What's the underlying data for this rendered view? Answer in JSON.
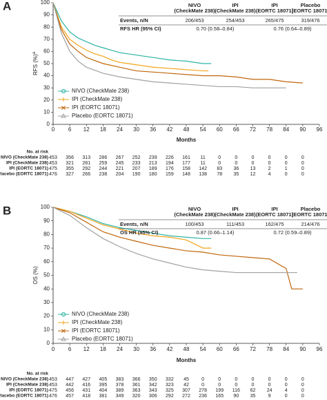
{
  "chart_data": [
    {
      "type": "line",
      "panel": "A",
      "xlabel": "Months",
      "ylabel": "RFS (%)",
      "ylabel_note": "a",
      "xlim": [
        0,
        96
      ],
      "xticks": [
        0,
        6,
        12,
        18,
        24,
        30,
        36,
        42,
        48,
        54,
        60,
        66,
        72,
        78,
        84,
        90,
        96
      ],
      "ylim": [
        0,
        100
      ],
      "yticks": [
        0,
        10,
        20,
        30,
        40,
        50,
        60,
        70,
        80,
        90,
        100
      ],
      "table": {
        "columns": [
          [
            "NIVO",
            "(CheckMate 238)"
          ],
          [
            "IPI",
            "(CheckMate 238)"
          ],
          [
            "IPI",
            "(EORTC 18071)"
          ],
          [
            "Placebo",
            "(EORTC 18071)"
          ]
        ],
        "events_label": "Events, n/N",
        "events": [
          "206/453",
          "254/453",
          "265/475",
          "319/476"
        ],
        "hr_label": "RFS HR (95% CI)",
        "hr": [
          "0.70 (0.58–0.84)",
          "0.76 (0.64–0.89)"
        ]
      },
      "risk_title": "No. at risk",
      "series": [
        {
          "name": "NIVO (CheckMate 238)",
          "color": "#2ab3a3",
          "marker": "circle",
          "x": [
            0,
            3,
            6,
            9,
            12,
            15,
            18,
            21,
            24,
            30,
            36,
            42,
            48,
            54,
            57
          ],
          "values": [
            100,
            85,
            76,
            71,
            68,
            65,
            63,
            61,
            59,
            57,
            55,
            53,
            52,
            50,
            50
          ],
          "at_risk": [
            453,
            356,
            313,
            286,
            267,
            252,
            239,
            226,
            161,
            11,
            0,
            0,
            0,
            0,
            0,
            0
          ]
        },
        {
          "name": "IPI (CheckMate 238)",
          "color": "#f2a31b",
          "marker": "plus",
          "x": [
            0,
            3,
            6,
            9,
            12,
            15,
            18,
            21,
            24,
            30,
            36,
            42,
            48,
            54,
            56
          ],
          "values": [
            100,
            80,
            70,
            65,
            61,
            58,
            56,
            53,
            51,
            49,
            47,
            46,
            45,
            44,
            44
          ],
          "at_risk": [
            453,
            321,
            281,
            259,
            245,
            233,
            213,
            194,
            177,
            11,
            0,
            0,
            0,
            0,
            0,
            0
          ]
        },
        {
          "name": "IPI (EORTC 18071)",
          "color": "#c0650a",
          "marker": "cross",
          "x": [
            0,
            3,
            6,
            9,
            12,
            18,
            24,
            30,
            36,
            42,
            48,
            54,
            60,
            66,
            72,
            78,
            84,
            90
          ],
          "values": [
            100,
            78,
            66,
            60,
            55,
            50,
            47,
            44,
            43,
            42,
            41,
            40,
            40,
            39,
            37,
            37,
            35,
            34
          ],
          "at_risk": [
            475,
            355,
            292,
            244,
            221,
            207,
            189,
            176,
            158,
            142,
            83,
            36,
            13,
            2,
            1,
            0
          ]
        },
        {
          "name": "Placebo (EORTC 18071)",
          "color": "#a0a0a0",
          "marker": "triangle",
          "x": [
            0,
            3,
            6,
            9,
            12,
            18,
            24,
            30,
            36,
            42,
            48,
            54,
            60,
            66,
            72,
            78,
            84
          ],
          "values": [
            100,
            75,
            60,
            52,
            47,
            42,
            39,
            37,
            35,
            34,
            33,
            32,
            31,
            31,
            30,
            30,
            30
          ],
          "at_risk": [
            476,
            327,
            266,
            238,
            204,
            190,
            180,
            159,
            148,
            138,
            78,
            35,
            12,
            4,
            0,
            0
          ]
        }
      ]
    },
    {
      "type": "line",
      "panel": "B",
      "xlabel": "Months",
      "ylabel": "OS (%)",
      "xlim": [
        0,
        96
      ],
      "xticks": [
        0,
        6,
        12,
        18,
        24,
        30,
        36,
        42,
        48,
        54,
        60,
        66,
        72,
        78,
        84,
        90,
        96
      ],
      "ylim": [
        0,
        100
      ],
      "yticks": [
        0,
        10,
        20,
        30,
        40,
        50,
        60,
        70,
        80,
        90,
        100
      ],
      "table": {
        "columns": [
          [
            "NIVO",
            "(CheckMate 238)"
          ],
          [
            "IPI",
            "(CheckMate 238)"
          ],
          [
            "IPI",
            "(EORTC 18071)"
          ],
          [
            "Placebo",
            "(EORTC 18071)"
          ]
        ],
        "events_label": "Events, n/N",
        "events": [
          "100/453",
          "111/453",
          "162/475",
          "214/476"
        ],
        "hr_label": "OS HR (95% CI)",
        "hr": [
          "0.87 (0.66–1.14)",
          "0.72 (0.59–0.89)"
        ]
      },
      "risk_title": "No. at risk",
      "series": [
        {
          "name": "NIVO (CheckMate 238)",
          "color": "#2ab3a3",
          "marker": "circle",
          "x": [
            0,
            6,
            12,
            18,
            24,
            30,
            36,
            42,
            48,
            54,
            57
          ],
          "values": [
            100,
            97,
            93,
            88,
            85,
            83,
            81,
            79,
            78,
            77,
            77
          ],
          "at_risk": [
            453,
            447,
            427,
            405,
            383,
            366,
            350,
            332,
            45,
            0,
            0,
            0,
            0,
            0,
            0,
            0
          ]
        },
        {
          "name": "IPI (CheckMate 238)",
          "color": "#f2a31b",
          "marker": "plus",
          "x": [
            0,
            6,
            12,
            18,
            24,
            30,
            36,
            42,
            48,
            52,
            54,
            57
          ],
          "values": [
            100,
            97,
            92,
            87,
            84,
            81,
            79,
            78,
            76,
            72,
            70,
            70
          ],
          "at_risk": [
            453,
            442,
            416,
            395,
            378,
            361,
            342,
            323,
            42,
            0,
            0,
            0,
            0,
            0,
            0,
            0
          ]
        },
        {
          "name": "IPI (EORTC 18071)",
          "color": "#c0650a",
          "marker": "cross",
          "x": [
            0,
            6,
            12,
            18,
            24,
            30,
            36,
            42,
            48,
            54,
            60,
            66,
            72,
            78,
            84,
            86,
            90
          ],
          "values": [
            100,
            96,
            89,
            82,
            78,
            75,
            72,
            70,
            68,
            67,
            65,
            64,
            63,
            62,
            55,
            40,
            40
          ],
          "at_risk": [
            475,
            456,
            431,
            404,
            389,
            363,
            343,
            325,
            307,
            278,
            199,
            116,
            62,
            24,
            4,
            0
          ]
        },
        {
          "name": "Placebo (EORTC 18071)",
          "color": "#a0a0a0",
          "marker": "triangle",
          "x": [
            0,
            6,
            12,
            18,
            24,
            30,
            36,
            42,
            48,
            54,
            60,
            66,
            72,
            78,
            84,
            88
          ],
          "values": [
            100,
            94,
            85,
            77,
            71,
            66,
            62,
            59,
            56,
            54,
            53,
            52,
            52,
            52,
            52,
            52
          ],
          "at_risk": [
            476,
            457,
            418,
            381,
            349,
            320,
            306,
            292,
            272,
            236,
            165,
            90,
            35,
            9,
            0,
            0
          ]
        }
      ]
    }
  ]
}
